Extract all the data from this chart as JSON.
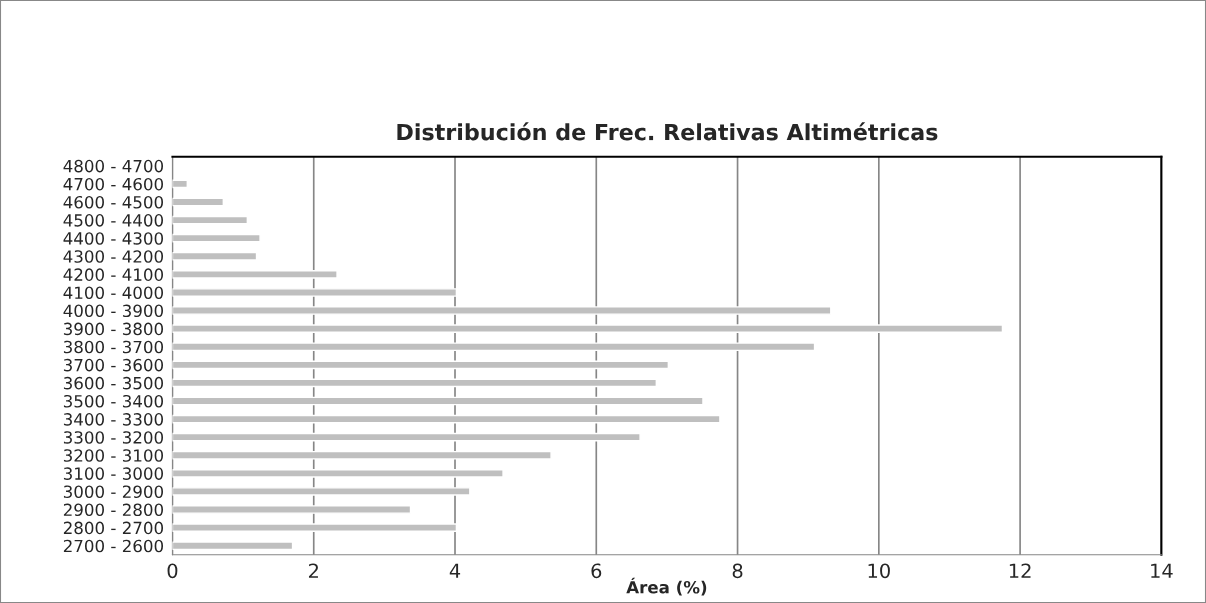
{
  "chart_data": {
    "type": "bar",
    "orientation": "horizontal",
    "title": "Distribución de Frec. Relativas Altimétricas",
    "xlabel": "Área (%)",
    "categories": [
      "4800 - 4700",
      "4700 - 4600",
      "4600 - 4500",
      "4500 - 4400",
      "4400 - 4300",
      "4300 - 4200",
      "4200 - 4100",
      "4100 - 4000",
      "4000 - 3900",
      "3900 - 3800",
      "3800 - 3700",
      "3700 - 3600",
      "3600 - 3500",
      "3500 - 3400",
      "3400 - 3300",
      "3300 - 3200",
      "3200 - 3100",
      "3100 - 3000",
      "3000 - 2900",
      "2900 - 2800",
      "2800 - 2700",
      "2700 - 2600"
    ],
    "values": [
      null,
      0.21,
      0.72,
      1.06,
      1.24,
      1.19,
      2.33,
      4.02,
      9.32,
      11.75,
      9.09,
      7.02,
      6.85,
      7.51,
      7.75,
      6.62,
      5.36,
      4.68,
      4.21,
      3.37,
      4.02,
      1.7
    ],
    "color": "#bfbfbf",
    "xlim": [
      0,
      14
    ],
    "xticks": [
      0,
      2,
      4,
      6,
      8,
      10,
      12,
      14
    ],
    "grid": "x",
    "legend": false
  }
}
